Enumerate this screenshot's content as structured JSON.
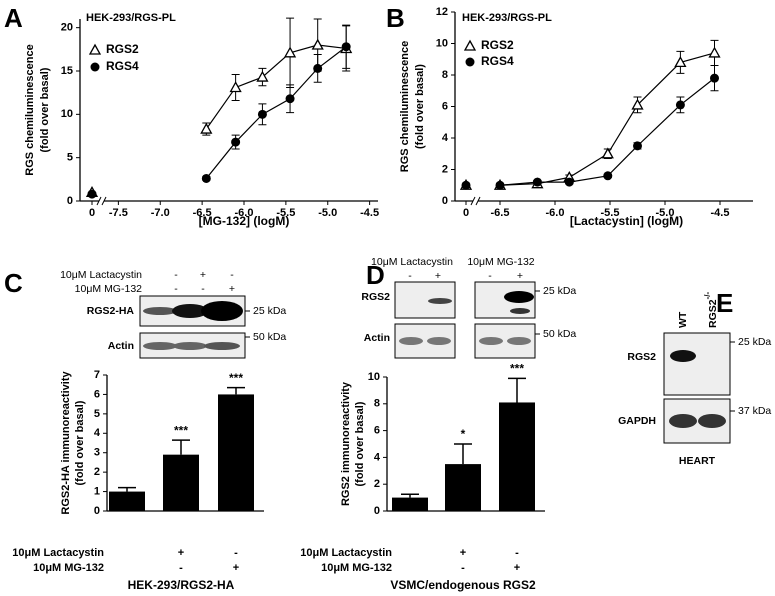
{
  "panels": [
    "A",
    "B",
    "C",
    "D",
    "E"
  ],
  "chart_data": [
    {
      "type": "scatter",
      "subtitle": "HEK-293/RGS-PL",
      "x_label": "[MG-132] (logM)",
      "y_label": [
        "RGS chemiluminescence",
        "(fold over basal)"
      ],
      "basal_tick": 0,
      "xlim": [
        -7.6,
        -4.4
      ],
      "xticks": [
        -7.5,
        {
          "value": -7,
          "label": "-7.0"
        },
        -6.5,
        {
          "value": -6,
          "label": "-6.0"
        },
        -5.5,
        {
          "value": -5,
          "label": "-5.0"
        },
        -4.5
      ],
      "ylim": [
        0,
        21
      ],
      "yticks": [
        0,
        5,
        10,
        15,
        20
      ],
      "series": [
        {
          "name": "RGS2",
          "marker": "triangle",
          "color": "#000000",
          "basal": 1.0,
          "x": [
            -6.45,
            -6.1,
            -5.78,
            -5.45,
            -5.12,
            -4.78
          ],
          "values": [
            8.3,
            13.1,
            14.3,
            17.1,
            18.0,
            17.6
          ],
          "errors": [
            0.7,
            1.5,
            1.0,
            4.0,
            3.0,
            2.6
          ]
        },
        {
          "name": "RGS4",
          "marker": "circle",
          "color": "#000000",
          "basal": 0.8,
          "x": [
            -6.45,
            -6.1,
            -5.78,
            -5.45,
            -5.12,
            -4.78
          ],
          "values": [
            2.6,
            6.8,
            10.0,
            11.8,
            15.3,
            17.8
          ],
          "errors": [
            0.2,
            0.8,
            1.2,
            1.6,
            1.6,
            2.5
          ]
        }
      ]
    },
    {
      "type": "scatter",
      "subtitle": "HEK-293/RGS-PL",
      "x_label": "[Lactacystin] (logM)",
      "y_label": [
        "RGS chemiluminescence",
        "(fold over basal)"
      ],
      "basal_tick": 0,
      "xlim": [
        -6.5,
        -4.2
      ],
      "xticks": [
        -6.5,
        {
          "value": -6,
          "label": "-6.0"
        },
        -5.5,
        {
          "value": -5,
          "label": "-5.0"
        },
        -4.5
      ],
      "ylim": [
        0,
        12
      ],
      "yticks": [
        0,
        2,
        4,
        6,
        8,
        10,
        12
      ],
      "series": [
        {
          "name": "RGS2",
          "marker": "triangle",
          "color": "#000000",
          "basal": 1.0,
          "x": [
            -6.5,
            -6.16,
            -5.87,
            -5.52,
            -5.25,
            -4.86,
            -4.55
          ],
          "values": [
            1.0,
            1.1,
            1.5,
            3.0,
            6.1,
            8.8,
            9.4
          ],
          "errors": [
            0.1,
            0.1,
            0.15,
            0.3,
            0.5,
            0.7,
            0.8
          ]
        },
        {
          "name": "RGS4",
          "marker": "circle",
          "color": "#000000",
          "basal": 1.0,
          "x": [
            -6.5,
            -6.16,
            -5.87,
            -5.52,
            -5.25,
            -4.86,
            -4.55
          ],
          "values": [
            1.0,
            1.2,
            1.2,
            1.6,
            3.5,
            6.1,
            7.8
          ],
          "errors": [
            0.1,
            0.1,
            0.1,
            0.1,
            0.2,
            0.5,
            0.8
          ]
        }
      ]
    },
    {
      "type": "bar",
      "x_label": "HEK-293/RGS2-HA",
      "y_label": [
        "RGS2-HA immunoreactivity",
        "(fold over basal)"
      ],
      "color": "#000000",
      "values": [
        1.0,
        2.9,
        6.0
      ],
      "errors": [
        0.2,
        0.75,
        0.35
      ],
      "annotations": [
        null,
        "***",
        "***"
      ],
      "treatments": [
        {
          "label": "10μM Lactacystin",
          "marks": [
            null,
            "+",
            "-"
          ]
        },
        {
          "label": "10μM MG-132",
          "marks": [
            null,
            "-",
            "+"
          ]
        }
      ],
      "ylim": [
        0,
        7
      ],
      "yticks": [
        0,
        1,
        2,
        3,
        4,
        5,
        6,
        7
      ]
    },
    {
      "type": "bar",
      "x_label": "VSMC/endogenous RGS2",
      "y_label": [
        "RGS2 immunoreactivity",
        "(fold over basal)"
      ],
      "color": "#000000",
      "values": [
        1.0,
        3.5,
        8.1
      ],
      "errors": [
        0.25,
        1.5,
        1.8
      ],
      "annotations": [
        null,
        "*",
        "***"
      ],
      "treatments": [
        {
          "label": "10μM Lactacystin",
          "marks": [
            null,
            "+",
            "-"
          ]
        },
        {
          "label": "10μM MG-132",
          "marks": [
            null,
            "-",
            "+"
          ]
        }
      ],
      "ylim": [
        0,
        10
      ],
      "yticks": [
        0,
        2,
        4,
        6,
        8,
        10
      ]
    }
  ],
  "blots": {
    "C": {
      "header_rows": [
        {
          "label": "10μM Lactacystin",
          "marks": [
            "-",
            "+",
            "-"
          ]
        },
        {
          "label": "10μM MG-132",
          "marks": [
            "-",
            "-",
            "+"
          ]
        }
      ],
      "rows": [
        "RGS2-HA",
        "Actin"
      ],
      "markers": [
        "25 kDa",
        "50 kDa"
      ]
    },
    "D": {
      "header_groups": [
        {
          "label": "10μM Lactacystin",
          "marks": [
            "-",
            "+"
          ]
        },
        {
          "label": "10μM MG-132",
          "marks": [
            "-",
            "+"
          ]
        }
      ],
      "rows": [
        "RGS2",
        "Actin"
      ],
      "markers": [
        "25 kDa",
        "50 kDa"
      ]
    },
    "E": {
      "lanes": [
        "WT"
      ],
      "knockout_lane": {
        "label": "RGS2",
        "superscript": "-/-"
      },
      "rows": [
        "RGS2",
        "GAPDH"
      ],
      "markers": [
        "25 kDa",
        "37 kDa"
      ],
      "tissue": "HEART"
    }
  }
}
